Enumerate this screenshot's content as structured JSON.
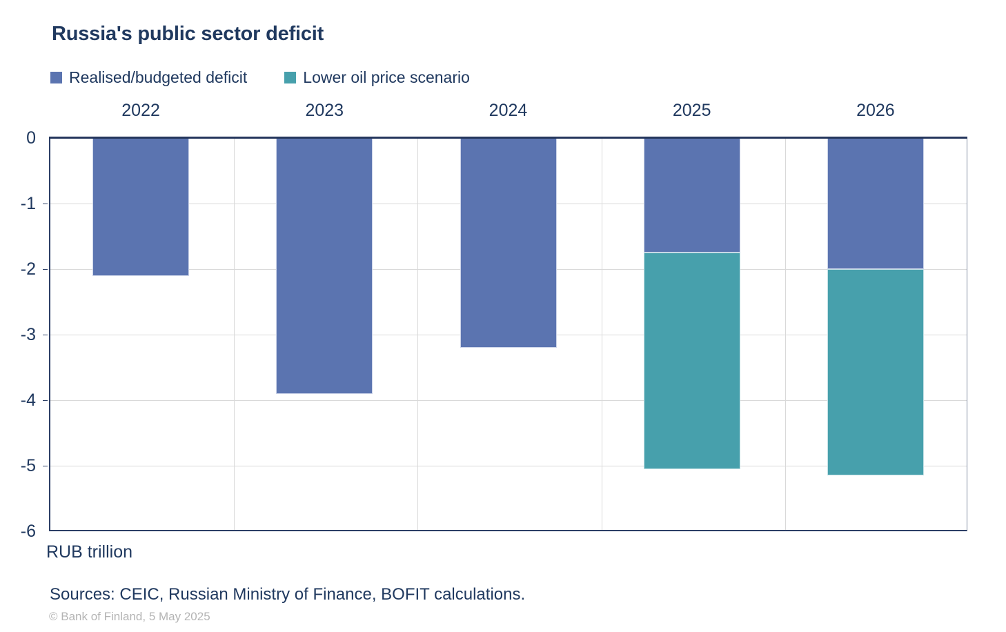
{
  "title": "Russia's public sector deficit",
  "legend": {
    "items": [
      {
        "label": "Realised/budgeted deficit",
        "color": "#5b74b0"
      },
      {
        "label": "Lower oil price scenario",
        "color": "#47a0ac"
      }
    ]
  },
  "footer": {
    "unit_label": "RUB trillion",
    "sources": "Sources: CEIC, Russian Ministry of Finance, BOFIT calculations.",
    "copyright": "© Bank of Finland, 5 May 2025"
  },
  "colors": {
    "text_navy": "#20395f",
    "bar_blue": "#5b74b0",
    "bar_teal": "#47a0ac",
    "gridline": "#d9d9d9",
    "axis_line": "#2c3f66",
    "copyright_gray": "#b4b4b4"
  },
  "chart_data": {
    "type": "bar",
    "stacked": true,
    "title": "Russia's public sector deficit",
    "ylabel": "RUB trillion",
    "categories": [
      "2022",
      "2023",
      "2024",
      "2025",
      "2026"
    ],
    "series": [
      {
        "name": "Realised/budgeted deficit",
        "color": "#5b74b0",
        "edge_color": "#ccd4e8",
        "values": [
          -2.1,
          -3.9,
          -3.2,
          -1.75,
          -2.0
        ]
      },
      {
        "name": "Lower oil price scenario",
        "color": "#47a0ac",
        "edge_color": "#c4e1e5",
        "values": [
          null,
          null,
          null,
          -3.3,
          -3.15
        ]
      }
    ],
    "stack_totals": [
      -2.1,
      -3.9,
      -3.2,
      -5.05,
      -5.15
    ],
    "ylim": [
      -6,
      0
    ],
    "yticks": [
      0,
      -1,
      -2,
      -3,
      -4,
      -5,
      -6
    ],
    "grid": true,
    "x_axis_position": "top",
    "legend_position": "top-left"
  }
}
